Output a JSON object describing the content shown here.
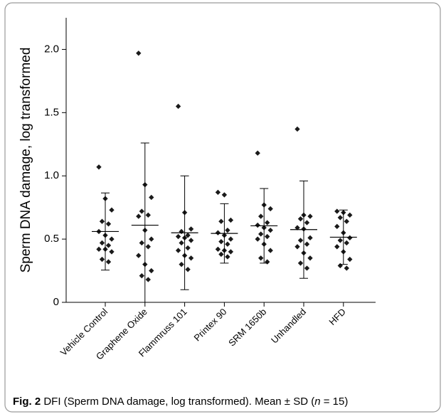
{
  "chart_data": {
    "type": "dotplot",
    "y_label": "Sperm DNA damage, log transformed",
    "caption_label": "Fig. 2",
    "caption_text": "DFI (Sperm DNA damage, log transformed). Mean ± SD (",
    "caption_n": "n",
    "caption_end": " = 15)",
    "categories": [
      "Vehicle Control",
      "Graphene Oxide",
      "Flammruss 101",
      "Printex 90",
      "SRM 1650b",
      "Unhandled",
      "HFD"
    ],
    "points": [
      [
        1.07,
        0.82,
        0.73,
        0.64,
        0.62,
        0.56,
        0.53,
        0.5,
        0.47,
        0.45,
        0.42,
        0.42,
        0.4,
        0.34,
        0.32
      ],
      [
        1.97,
        0.93,
        0.83,
        0.72,
        0.69,
        0.68,
        0.57,
        0.5,
        0.47,
        0.44,
        0.37,
        0.3,
        0.25,
        0.21,
        0.18
      ],
      [
        1.55,
        0.71,
        0.58,
        0.56,
        0.53,
        0.52,
        0.51,
        0.49,
        0.47,
        0.43,
        0.41,
        0.37,
        0.35,
        0.3,
        0.26
      ],
      [
        0.87,
        0.85,
        0.65,
        0.64,
        0.57,
        0.55,
        0.53,
        0.5,
        0.48,
        0.46,
        0.42,
        0.41,
        0.4,
        0.38,
        0.36
      ],
      [
        1.18,
        0.77,
        0.74,
        0.68,
        0.63,
        0.61,
        0.59,
        0.57,
        0.54,
        0.52,
        0.5,
        0.46,
        0.41,
        0.35,
        0.32
      ],
      [
        1.37,
        0.69,
        0.68,
        0.66,
        0.63,
        0.59,
        0.58,
        0.51,
        0.49,
        0.46,
        0.44,
        0.39,
        0.35,
        0.31,
        0.27
      ],
      [
        0.72,
        0.71,
        0.69,
        0.67,
        0.64,
        0.6,
        0.55,
        0.51,
        0.49,
        0.47,
        0.44,
        0.4,
        0.34,
        0.29,
        0.27
      ]
    ],
    "means": [
      0.56,
      0.61,
      0.55,
      0.545,
      0.605,
      0.575,
      0.515
    ],
    "sds": [
      0.305,
      0.65,
      0.45,
      0.235,
      0.295,
      0.385,
      0.215
    ],
    "color": "#1a1a1a",
    "ylim": [
      0,
      2.25
    ],
    "yticks": [
      0,
      0.5,
      {
        "value": 1,
        "label": "1.0"
      },
      1.5,
      {
        "value": 2,
        "label": "2.0"
      }
    ]
  }
}
